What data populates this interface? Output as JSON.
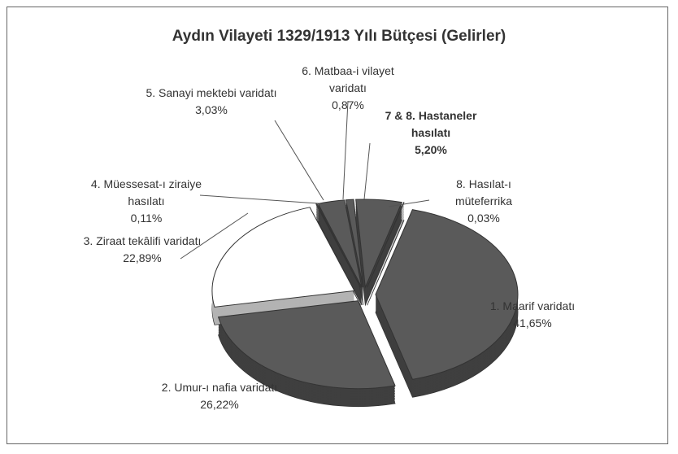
{
  "chart_data": {
    "type": "pie",
    "title": "Aydın Vilayeti 1329/1913 Yılı Bütçesi (Gelirler)",
    "categories": [
      "1. Maarif varidatı",
      "2. Umur-ı nafia varidatı",
      "3. Ziraat tekâlifi varidatı",
      "4. Müessesat-ı ziraiye hasılatı",
      "5. Sanayi mektebi varidatı",
      "6. Matbaa-i vilayet varidatı",
      "7 & 8. Hastaneler hasılatı",
      "8. Hasılat-ı müteferrika"
    ],
    "values": [
      41.65,
      26.22,
      22.89,
      0.11,
      3.03,
      0.87,
      5.2,
      0.03
    ],
    "value_labels": [
      "41,65%",
      "26,22%",
      "22,89%",
      "0,11%",
      "3,03%",
      "0,87%",
      "5,20%",
      "0,03%"
    ],
    "colors": [
      "#5a5a5a",
      "#5a5a5a",
      "#ffffff",
      "#8a8a8a",
      "#5a5a5a",
      "#5a5a5a",
      "#5a5a5a",
      "#5a5a5a"
    ]
  }
}
